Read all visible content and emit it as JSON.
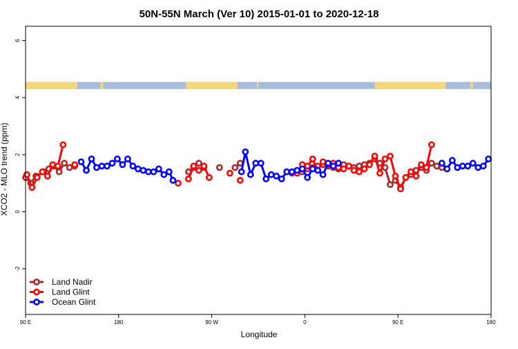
{
  "chart_data": {
    "type": "line",
    "title": "50N-55N March (Ver 10)   2015-01-01 to 2020-12-18",
    "xlabel": "Longitude",
    "ylabel": "XCO2 - MLO trend (ppm)",
    "xlim": [
      0,
      360
    ],
    "ylim": [
      -3.6,
      6.5
    ],
    "x_ticks": [
      {
        "value": 0,
        "label": "90 E"
      },
      {
        "value": 72,
        "label": "180"
      },
      {
        "value": 144,
        "label": "90 W"
      },
      {
        "value": 216,
        "label": "0"
      },
      {
        "value": 288,
        "label": "90 E"
      },
      {
        "value": 360,
        "label": "180"
      }
    ],
    "y_ticks": [
      {
        "value": -2,
        "label": "-2"
      },
      {
        "value": 0,
        "label": "0"
      },
      {
        "value": 2,
        "label": "2"
      },
      {
        "value": 4,
        "label": "4"
      },
      {
        "value": 6,
        "label": "6"
      }
    ],
    "land_mask": {
      "y_range": [
        4.3,
        4.55
      ],
      "ocean_color": "#a6bddb",
      "land_color": "#f5d67a",
      "land_segments": [
        [
          0,
          40
        ],
        [
          58,
          60
        ],
        [
          124,
          164
        ],
        [
          179,
          180
        ],
        [
          270,
          325
        ],
        [
          344,
          346
        ]
      ]
    },
    "series": [
      {
        "name": "Land Nadir",
        "color": "#a52a2a",
        "segments": [
          [
            [
              0,
              1.2
            ],
            [
              4,
              1.0
            ],
            [
              8,
              1.25
            ],
            [
              14,
              1.4
            ],
            [
              18,
              1.5
            ],
            [
              22,
              1.6
            ],
            [
              26,
              1.4
            ],
            [
              30,
              1.7
            ],
            [
              34,
              1.55
            ],
            [
              38,
              1.6
            ]
          ],
          [
            [
              126,
              1.4
            ],
            [
              130,
              1.55
            ],
            [
              134,
              1.7
            ],
            [
              138,
              1.55
            ]
          ],
          [
            [
              150,
              1.55
            ]
          ],
          [
            [
              162,
              1.55
            ],
            [
              166,
              1.7
            ]
          ],
          [
            [
              206,
              1.35
            ],
            [
              210,
              1.45
            ],
            [
              214,
              1.4
            ],
            [
              218,
              1.5
            ],
            [
              222,
              1.55
            ],
            [
              226,
              1.6
            ],
            [
              230,
              1.65
            ],
            [
              234,
              1.6
            ],
            [
              238,
              1.55
            ],
            [
              242,
              1.5
            ],
            [
              246,
              1.65
            ],
            [
              250,
              1.6
            ],
            [
              254,
              1.55
            ],
            [
              258,
              1.6
            ],
            [
              262,
              1.65
            ],
            [
              266,
              1.7
            ],
            [
              270,
              1.85
            ],
            [
              274,
              1.7
            ],
            [
              278,
              1.55
            ],
            [
              282,
              0.95
            ],
            [
              286,
              1.1
            ],
            [
              290,
              0.85
            ],
            [
              294,
              1.2
            ],
            [
              298,
              1.3
            ],
            [
              302,
              1.45
            ],
            [
              306,
              1.55
            ],
            [
              310,
              1.45
            ],
            [
              314,
              1.7
            ],
            [
              318,
              1.6
            ],
            [
              322,
              1.55
            ]
          ]
        ]
      },
      {
        "name": "Land Glint",
        "color": "#ff0000",
        "segments": [
          [
            [
              1,
              1.3
            ],
            [
              5,
              0.85
            ],
            [
              9,
              1.2
            ],
            [
              13,
              1.4
            ],
            [
              17,
              1.25
            ],
            [
              21,
              1.65
            ],
            [
              25,
              1.6
            ],
            [
              29,
              2.35
            ]
          ],
          [
            [
              38,
              1.65
            ]
          ],
          [
            [
              118,
              1.0
            ]
          ],
          [
            [
              126,
              1.15
            ],
            [
              130,
              1.6
            ],
            [
              134,
              1.45
            ],
            [
              138,
              1.6
            ],
            [
              142,
              1.2
            ]
          ],
          [
            [
              158,
              1.35
            ]
          ],
          [
            [
              166,
              1.1
            ]
          ],
          [
            [
              210,
              1.35
            ],
            [
              214,
              1.65
            ],
            [
              218,
              1.6
            ],
            [
              222,
              1.85
            ],
            [
              226,
              1.45
            ],
            [
              230,
              1.75
            ],
            [
              234,
              1.65
            ],
            [
              238,
              1.7
            ],
            [
              242,
              1.55
            ],
            [
              246,
              1.5
            ],
            [
              250,
              1.6
            ],
            [
              254,
              1.45
            ],
            [
              258,
              1.4
            ],
            [
              262,
              1.5
            ],
            [
              266,
              1.65
            ],
            [
              270,
              1.95
            ],
            [
              274,
              1.35
            ],
            [
              278,
              1.85
            ],
            [
              282,
              1.95
            ],
            [
              286,
              1.25
            ],
            [
              290,
              0.8
            ],
            [
              294,
              1.2
            ],
            [
              298,
              1.4
            ],
            [
              302,
              1.25
            ],
            [
              306,
              1.65
            ],
            [
              310,
              1.55
            ],
            [
              314,
              2.35
            ]
          ]
        ]
      },
      {
        "name": "Ocean Glint",
        "color": "#0000ff",
        "segments": [
          [
            [
              43,
              1.75
            ],
            [
              47,
              1.45
            ],
            [
              51,
              1.85
            ],
            [
              55,
              1.55
            ],
            [
              59,
              1.6
            ],
            [
              63,
              1.6
            ],
            [
              67,
              1.7
            ],
            [
              71,
              1.85
            ],
            [
              75,
              1.65
            ],
            [
              79,
              1.85
            ],
            [
              83,
              1.6
            ],
            [
              87,
              1.5
            ],
            [
              91,
              1.45
            ],
            [
              95,
              1.4
            ],
            [
              99,
              1.4
            ],
            [
              103,
              1.5
            ],
            [
              107,
              1.3
            ],
            [
              111,
              1.4
            ],
            [
              114,
              1.1
            ]
          ],
          [
            [
              167,
              1.4
            ],
            [
              170,
              2.1
            ],
            [
              174,
              1.3
            ],
            [
              178,
              1.7
            ],
            [
              182,
              1.7
            ],
            [
              186,
              1.15
            ],
            [
              190,
              1.3
            ],
            [
              194,
              1.25
            ],
            [
              198,
              1.15
            ],
            [
              202,
              1.4
            ],
            [
              206,
              1.4
            ],
            [
              210,
              1.45
            ],
            [
              214,
              1.5
            ],
            [
              218,
              1.2
            ],
            [
              222,
              1.5
            ],
            [
              226,
              1.45
            ],
            [
              230,
              1.3
            ],
            [
              234,
              1.7
            ],
            [
              238,
              1.6
            ],
            [
              242,
              1.7
            ]
          ],
          [
            [
              322,
              1.7
            ],
            [
              326,
              1.5
            ],
            [
              330,
              1.8
            ],
            [
              334,
              1.55
            ],
            [
              338,
              1.6
            ],
            [
              342,
              1.6
            ],
            [
              346,
              1.7
            ],
            [
              350,
              1.55
            ],
            [
              354,
              1.6
            ],
            [
              358,
              1.85
            ]
          ]
        ]
      }
    ],
    "legend": {
      "position": "bottom-left",
      "entries": [
        "Land Nadir",
        "Land Glint",
        "Ocean Glint"
      ]
    }
  }
}
